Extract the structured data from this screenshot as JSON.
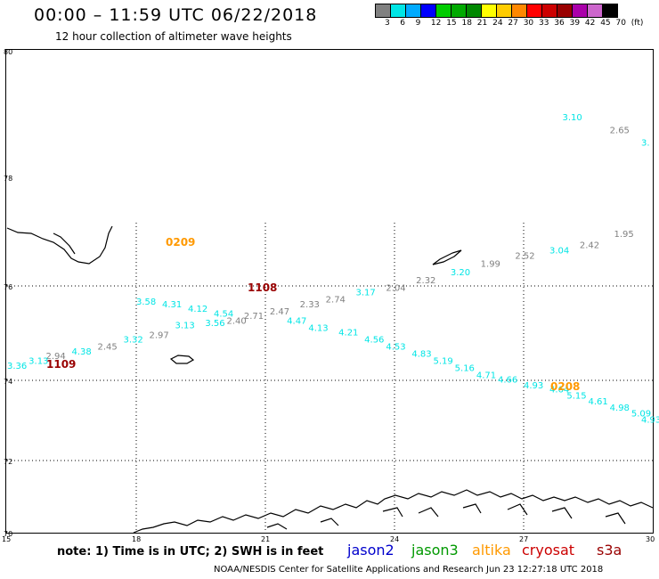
{
  "title": "00:00 – 11:59 UTC 06/22/2018",
  "subtitle": "12 hour collection of altimeter wave heights",
  "color_scale": {
    "colors": [
      "#808080",
      "#00e5e5",
      "#00aaff",
      "#0000ff",
      "#00cc00",
      "#00aa00",
      "#008800",
      "#ffff00",
      "#ffcc00",
      "#ff8800",
      "#ff0000",
      "#cc0000",
      "#990000",
      "#aa00aa",
      "#cc66cc",
      "#000000"
    ],
    "labels": [
      "3",
      "6",
      "9",
      "12",
      "15",
      "18",
      "21",
      "24",
      "27",
      "30",
      "33",
      "36",
      "39",
      "42",
      "45",
      "70",
      "(ft)"
    ]
  },
  "lat_labels": [
    "80",
    "78",
    "76",
    "74",
    "72",
    "70"
  ],
  "lon_labels": [
    "15",
    "18",
    "21",
    "24",
    "27",
    "30"
  ],
  "pass_colors": {
    "cyan": "#00e5e5",
    "gray": "#808080",
    "orange": "#ff9900",
    "darkred": "#990000"
  },
  "track_points": [
    {
      "text": "3.10",
      "color": "cyan",
      "lon": 27.9,
      "lat": 78.9
    },
    {
      "text": "2.65",
      "color": "gray",
      "lon": 29.0,
      "lat": 78.7
    },
    {
      "text": "3.",
      "color": "cyan",
      "lon": 30.0,
      "lat": 78.5
    },
    {
      "text": "1.95",
      "color": "gray",
      "lon": 29.1,
      "lat": 76.9
    },
    {
      "text": "2.42",
      "color": "gray",
      "lon": 28.3,
      "lat": 76.7
    },
    {
      "text": "3.04",
      "color": "cyan",
      "lon": 27.6,
      "lat": 76.6
    },
    {
      "text": "2.52",
      "color": "gray",
      "lon": 26.8,
      "lat": 76.5
    },
    {
      "text": "1.99",
      "color": "gray",
      "lon": 26.0,
      "lat": 76.35
    },
    {
      "text": "3.20",
      "color": "cyan",
      "lon": 25.3,
      "lat": 76.2
    },
    {
      "text": "2.32",
      "color": "gray",
      "lon": 24.5,
      "lat": 76.05
    },
    {
      "text": "2.04",
      "color": "gray",
      "lon": 23.8,
      "lat": 75.9
    },
    {
      "text": "3.17",
      "color": "cyan",
      "lon": 23.1,
      "lat": 75.8
    },
    {
      "text": "2.74",
      "color": "gray",
      "lon": 22.4,
      "lat": 75.65
    },
    {
      "text": "2.33",
      "color": "gray",
      "lon": 21.8,
      "lat": 75.55
    },
    {
      "text": "2.47",
      "color": "gray",
      "lon": 21.1,
      "lat": 75.4
    },
    {
      "text": "2.71",
      "color": "gray",
      "lon": 20.5,
      "lat": 75.3
    },
    {
      "text": "4.54",
      "color": "cyan",
      "lon": 19.8,
      "lat": 75.35
    },
    {
      "text": "4.12",
      "color": "cyan",
      "lon": 19.2,
      "lat": 75.45
    },
    {
      "text": "4.31",
      "color": "cyan",
      "lon": 18.6,
      "lat": 75.55
    },
    {
      "text": "3.58",
      "color": "cyan",
      "lon": 18.0,
      "lat": 75.6
    },
    {
      "text": "2.40",
      "color": "gray",
      "lon": 20.1,
      "lat": 75.2
    },
    {
      "text": "3.56",
      "color": "cyan",
      "lon": 19.6,
      "lat": 75.15
    },
    {
      "text": "3.13",
      "color": "cyan",
      "lon": 18.9,
      "lat": 75.1
    },
    {
      "text": "2.97",
      "color": "gray",
      "lon": 18.3,
      "lat": 74.9
    },
    {
      "text": "3.32",
      "color": "cyan",
      "lon": 17.7,
      "lat": 74.8
    },
    {
      "text": "2.45",
      "color": "gray",
      "lon": 17.1,
      "lat": 74.65
    },
    {
      "text": "4.38",
      "color": "cyan",
      "lon": 16.5,
      "lat": 74.55
    },
    {
      "text": "2.94",
      "color": "gray",
      "lon": 15.9,
      "lat": 74.45
    },
    {
      "text": "3.13",
      "color": "cyan",
      "lon": 15.5,
      "lat": 74.35
    },
    {
      "text": "3.36",
      "color": "cyan",
      "lon": 15.0,
      "lat": 74.25
    },
    {
      "text": "4.47",
      "color": "cyan",
      "lon": 21.5,
      "lat": 75.2
    },
    {
      "text": "4.13",
      "color": "cyan",
      "lon": 22.0,
      "lat": 75.05
    },
    {
      "text": "4.21",
      "color": "cyan",
      "lon": 22.7,
      "lat": 74.95
    },
    {
      "text": "4.56",
      "color": "cyan",
      "lon": 23.3,
      "lat": 74.8
    },
    {
      "text": "4.53",
      "color": "cyan",
      "lon": 23.8,
      "lat": 74.65
    },
    {
      "text": "4.83",
      "color": "cyan",
      "lon": 24.4,
      "lat": 74.5
    },
    {
      "text": "5.19",
      "color": "cyan",
      "lon": 24.9,
      "lat": 74.35
    },
    {
      "text": "5.16",
      "color": "cyan",
      "lon": 25.4,
      "lat": 74.2
    },
    {
      "text": "4.71",
      "color": "cyan",
      "lon": 25.9,
      "lat": 74.05
    },
    {
      "text": "4.66",
      "color": "cyan",
      "lon": 26.4,
      "lat": 73.95
    },
    {
      "text": "4.93",
      "color": "cyan",
      "lon": 27.0,
      "lat": 73.8
    },
    {
      "text": "4.64",
      "color": "cyan",
      "lon": 27.6,
      "lat": 73.7
    },
    {
      "text": "5.15",
      "color": "cyan",
      "lon": 28.0,
      "lat": 73.55
    },
    {
      "text": "4.61",
      "color": "cyan",
      "lon": 28.5,
      "lat": 73.4
    },
    {
      "text": "4.98",
      "color": "cyan",
      "lon": 29.0,
      "lat": 73.25
    },
    {
      "text": "5.09",
      "color": "cyan",
      "lon": 29.5,
      "lat": 73.1
    },
    {
      "text": "4.93",
      "color": "cyan",
      "lon": 30.0,
      "lat": 72.95
    }
  ],
  "pass_labels": [
    {
      "text": "0209",
      "color": "orange"
    },
    {
      "text": "1108",
      "color": "darkred"
    },
    {
      "text": "1109",
      "color": "darkred"
    },
    {
      "text": "0208",
      "color": "orange"
    }
  ],
  "note": "note:  1) Time is in UTC;  2) SWH is in feet",
  "satellites": [
    {
      "name": "jason2",
      "color": "#0000cc"
    },
    {
      "name": "jason3",
      "color": "#009900"
    },
    {
      "name": "altika",
      "color": "#ff9900"
    },
    {
      "name": "cryosat",
      "color": "#cc0000"
    },
    {
      "name": "s3a",
      "color": "#990000"
    }
  ],
  "credit": "NOAA/NESDIS Center for Satellite Applications and Research     Jun 23 12:27:18 UTC 2018"
}
